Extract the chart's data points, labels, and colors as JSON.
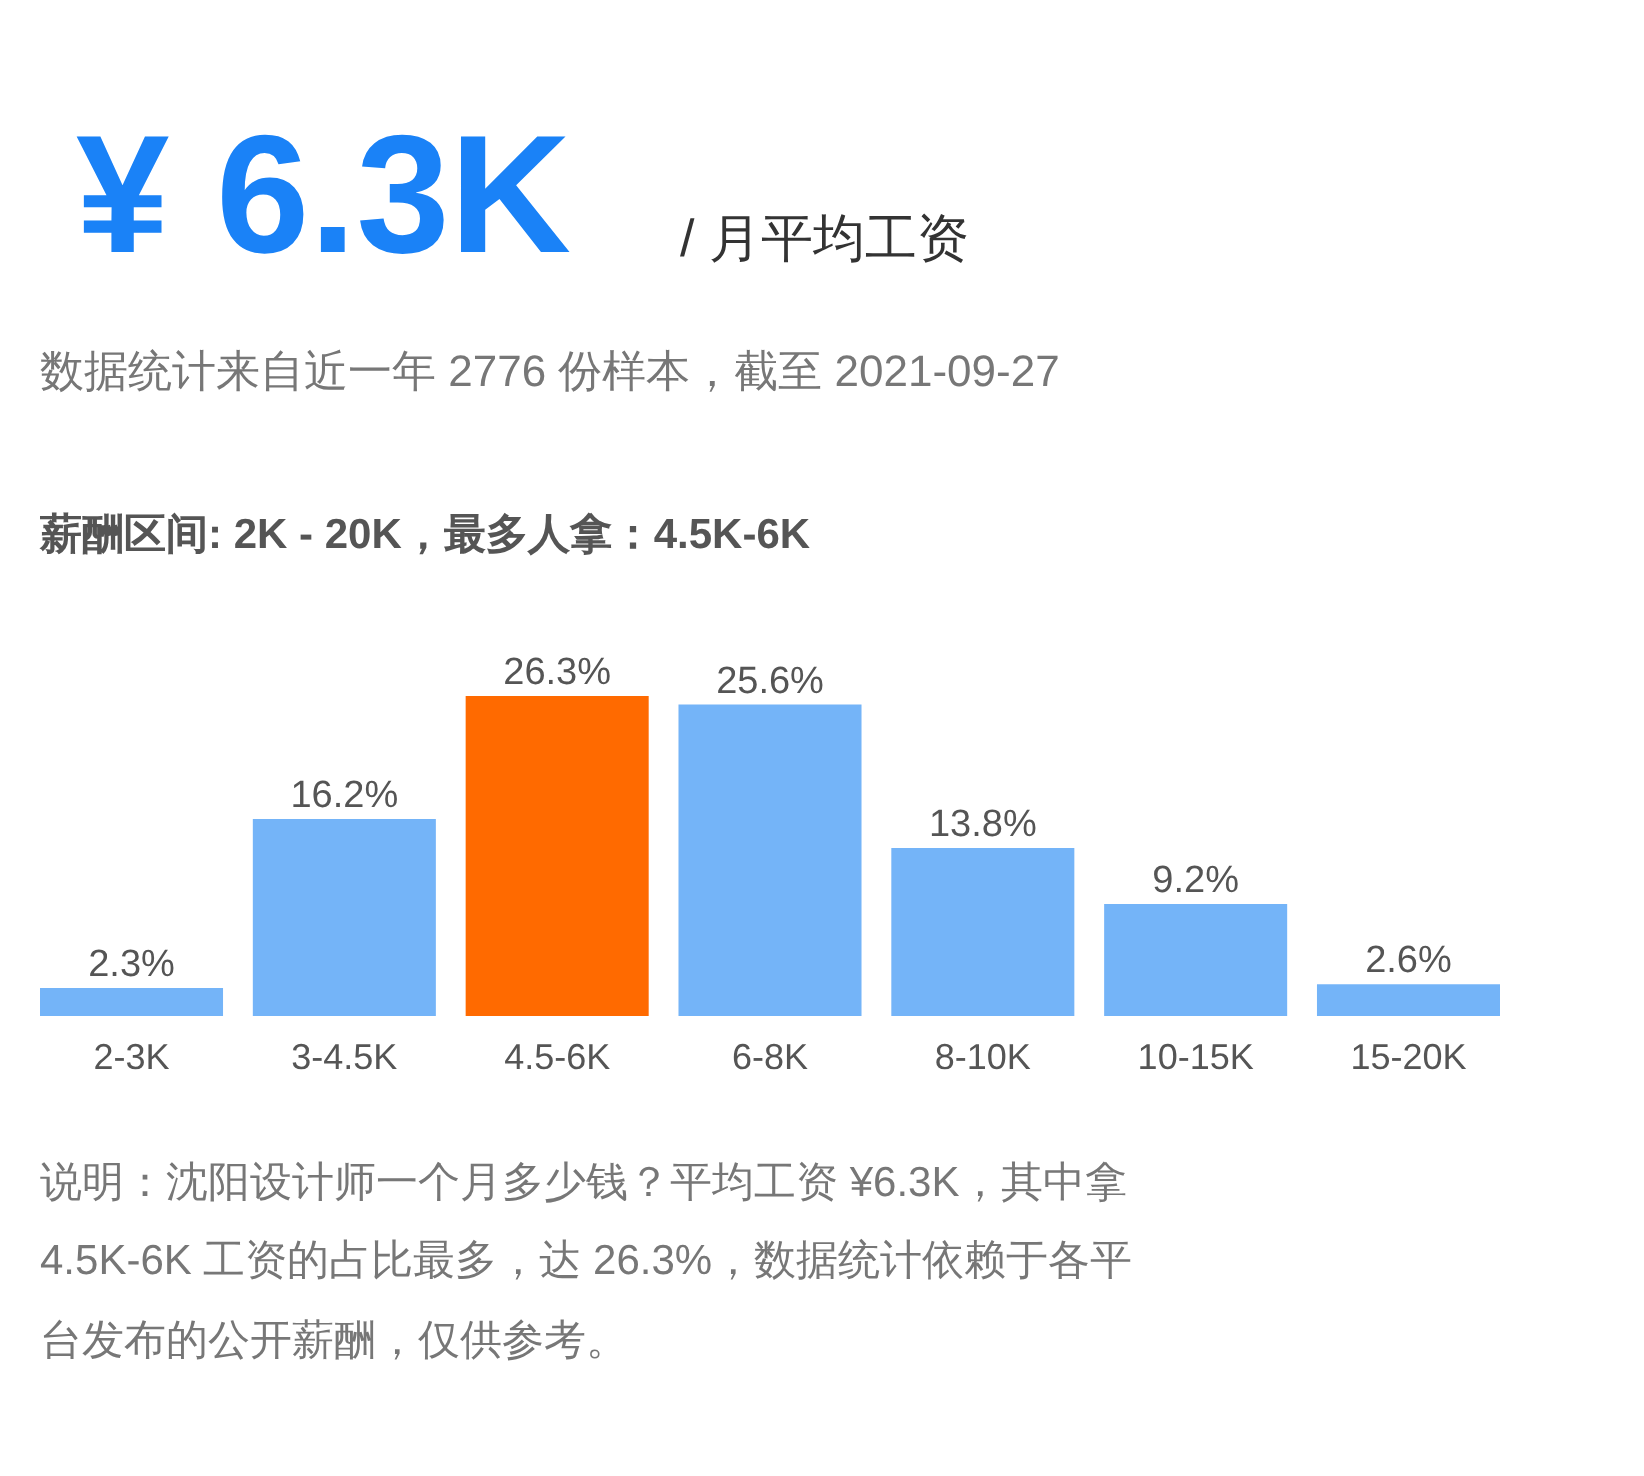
{
  "chart_data": {
    "type": "bar",
    "title": "¥ 6.3K",
    "subtitle": "/ 月平均工资",
    "annotations": [
      "数据统计来自近一年 2776 份样本，截至 2021-09-27",
      "薪酬区间: 2K - 20K，最多人拿：4.5K-6K",
      "说明：沈阳设计师一个月多少钱？平均工资 ¥6.3K，其中拿",
      "4.5K-6K 工资的占比最多，达 26.3%，数据统计依赖于各平",
      "台发布的公开薪酬，仅供参考。"
    ],
    "categories": [
      "2-3K",
      "3-4.5K",
      "4.5-6K",
      "6-8K",
      "8-10K",
      "10-15K",
      "15-20K"
    ],
    "values": [
      2.3,
      16.2,
      26.3,
      25.6,
      13.8,
      9.2,
      2.6
    ],
    "value_labels": [
      "2.3%",
      "16.2%",
      "26.3%",
      "25.6%",
      "13.8%",
      "9.2%",
      "2.6%"
    ],
    "colors": [
      "#74b4f8",
      "#74b4f8",
      "#ff6a00",
      "#74b4f8",
      "#74b4f8",
      "#74b4f8",
      "#74b4f8"
    ],
    "grid": false,
    "legend": false
  }
}
